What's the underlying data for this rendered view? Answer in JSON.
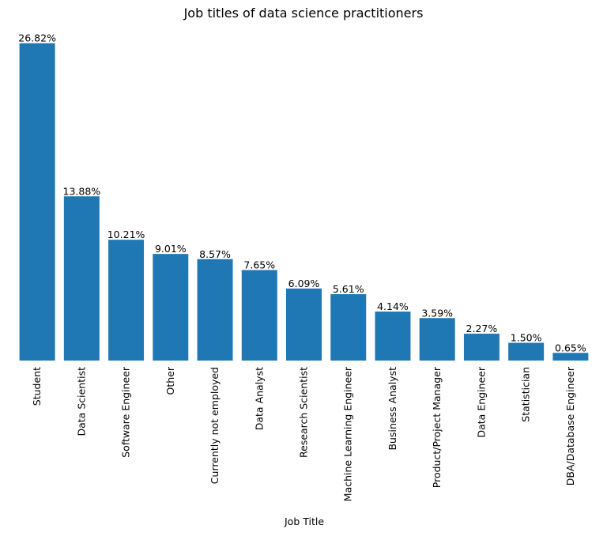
{
  "chart_data": {
    "type": "bar",
    "title": "Job titles of data science practitioners",
    "xlabel": "Job Title",
    "ylabel": "",
    "categories": [
      "Student",
      "Data Scientist",
      "Software Engineer",
      "Other",
      "Currently not employed",
      "Data Analyst",
      "Research Scientist",
      "Machine Learning Engineer",
      "Business Analyst",
      "Product/Project Manager",
      "Data Engineer",
      "Statistician",
      "DBA/Database Engineer"
    ],
    "values": [
      26.82,
      13.88,
      10.21,
      9.01,
      8.57,
      7.65,
      6.09,
      5.61,
      4.14,
      3.59,
      2.27,
      1.5,
      0.65
    ],
    "data_labels": [
      "26.82%",
      "13.88%",
      "10.21%",
      "9.01%",
      "8.57%",
      "7.65%",
      "6.09%",
      "5.61%",
      "4.14%",
      "3.59%",
      "2.27%",
      "1.50%",
      "0.65%"
    ],
    "ylim": [
      0,
      28.2
    ],
    "grid": false,
    "bar_color": "#1f77b4"
  }
}
